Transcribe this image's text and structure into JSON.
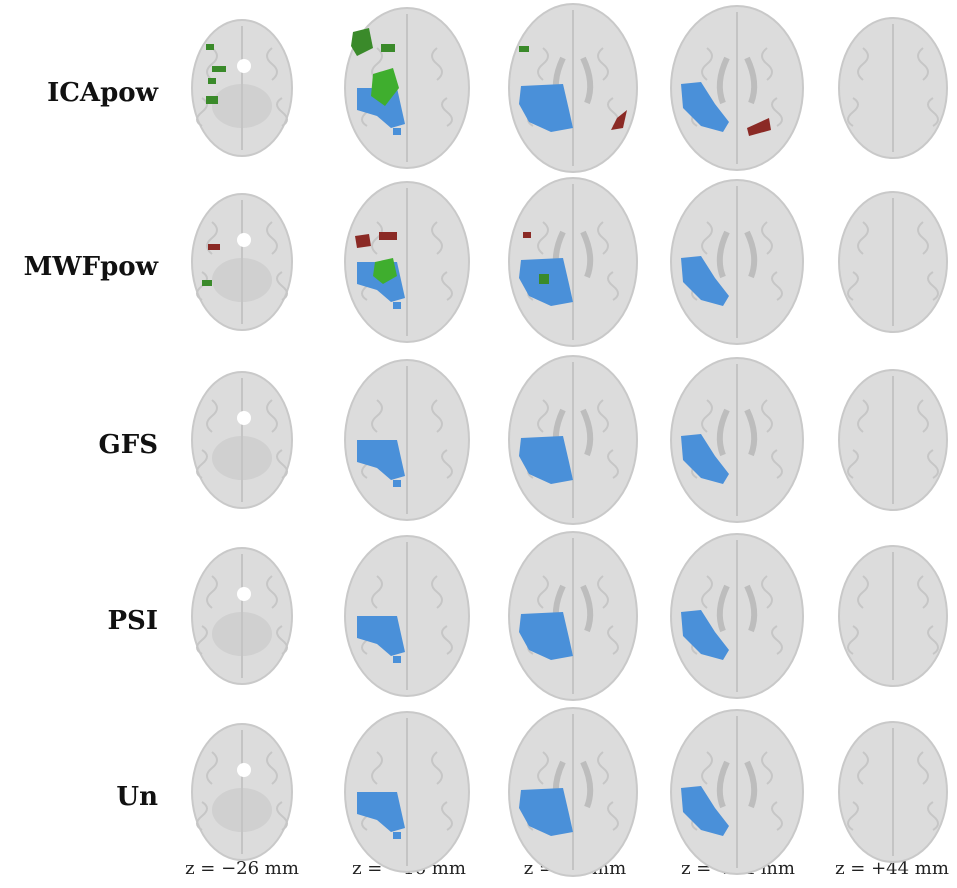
{
  "rows": [
    "ICApow",
    "MWFpow",
    "GFS",
    "PSI",
    "Un"
  ],
  "columns": [
    "z = −26 mm",
    "z = −16 mm",
    "z = +4 mm",
    "z = +24 mm",
    "z = +44 mm"
  ],
  "colors": {
    "brain": "#dcdcdc",
    "brain_edge": "#c9c9c9",
    "sulci": "#c4c4c4",
    "blue": "#4a90d9",
    "green": "#3a8a2a",
    "bright_green": "#3fae2e",
    "red": "#8b2a25"
  }
}
